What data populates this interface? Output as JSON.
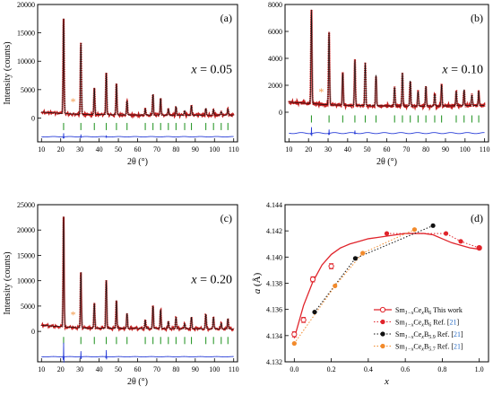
{
  "chart_data": [
    {
      "id": "a",
      "type": "line",
      "panel_label": "(a)",
      "annotation": "x = 0.05",
      "annotation_var": "x",
      "annotation_value": "= 0.05",
      "xlabel": "2θ (°)",
      "ylabel": "Intensity (counts)",
      "xlim": [
        8,
        112
      ],
      "ylim": [
        -4200,
        20000
      ],
      "x_ticks": [
        10,
        20,
        30,
        40,
        50,
        60,
        70,
        80,
        90,
        100,
        110
      ],
      "y_ticks": [
        0,
        5000,
        10000,
        15000,
        20000
      ],
      "background": {
        "x": [
          10,
          20,
          30,
          50,
          80,
          110
        ],
        "y": [
          1050,
          800,
          650,
          550,
          500,
          520
        ]
      },
      "peaks": [
        {
          "pos": 21.5,
          "height": 16800
        },
        {
          "pos": 30.5,
          "height": 12600
        },
        {
          "pos": 37.5,
          "height": 4700
        },
        {
          "pos": 43.7,
          "height": 7400
        },
        {
          "pos": 49.0,
          "height": 5500
        },
        {
          "pos": 54.5,
          "height": 2500
        },
        {
          "pos": 64.0,
          "height": 1100
        },
        {
          "pos": 68.0,
          "height": 3700
        },
        {
          "pos": 72.0,
          "height": 3000
        },
        {
          "pos": 76.0,
          "height": 1100
        },
        {
          "pos": 80.0,
          "height": 1500
        },
        {
          "pos": 84.5,
          "height": 800
        },
        {
          "pos": 88.0,
          "height": 1700
        },
        {
          "pos": 95.5,
          "height": 1200
        },
        {
          "pos": 99.5,
          "height": 1000
        },
        {
          "pos": 103.5,
          "height": 600
        },
        {
          "pos": 107.0,
          "height": 1100
        }
      ],
      "impurity_x": 26.5,
      "reflection_markers": [
        21.5,
        30.5,
        37.5,
        43.7,
        49.0,
        54.5,
        64.0,
        68.0,
        72.0,
        76.0,
        80.0,
        84.5,
        88.0,
        95.5,
        99.5,
        103.5,
        107.0
      ],
      "marker_y": -1500,
      "difference_y": -3300,
      "difference_spikes": [
        {
          "pos": 21.5,
          "amp": 700
        },
        {
          "pos": 30.5,
          "amp": 450
        },
        {
          "pos": 43.7,
          "amp": 250
        }
      ]
    },
    {
      "id": "b",
      "type": "line",
      "panel_label": "(b)",
      "annotation": "x = 0.10",
      "annotation_var": "x",
      "annotation_value": "= 0.10",
      "xlabel": "2θ (°)",
      "ylabel": "",
      "xlim": [
        8,
        112
      ],
      "ylim": [
        -2200,
        8000
      ],
      "x_ticks": [
        10,
        20,
        30,
        40,
        50,
        60,
        70,
        80,
        90,
        100,
        110
      ],
      "y_ticks": [
        0,
        2000,
        4000,
        6000,
        8000
      ],
      "background": {
        "x": [
          10,
          20,
          30,
          50,
          80,
          110
        ],
        "y": [
          750,
          650,
          550,
          480,
          450,
          500
        ]
      },
      "peaks": [
        {
          "pos": 21.5,
          "height": 7000
        },
        {
          "pos": 30.5,
          "height": 5400
        },
        {
          "pos": 37.5,
          "height": 2400
        },
        {
          "pos": 43.7,
          "height": 3400
        },
        {
          "pos": 49.0,
          "height": 3200
        },
        {
          "pos": 54.5,
          "height": 2300
        },
        {
          "pos": 64.0,
          "height": 1400
        },
        {
          "pos": 68.0,
          "height": 2500
        },
        {
          "pos": 72.0,
          "height": 1900
        },
        {
          "pos": 76.0,
          "height": 1100
        },
        {
          "pos": 80.0,
          "height": 1500
        },
        {
          "pos": 84.5,
          "height": 900
        },
        {
          "pos": 88.0,
          "height": 1600
        },
        {
          "pos": 95.5,
          "height": 1100
        },
        {
          "pos": 99.5,
          "height": 1200
        },
        {
          "pos": 103.5,
          "height": 800
        },
        {
          "pos": 107.0,
          "height": 1100
        }
      ],
      "impurity_x": 26.5,
      "reflection_markers": [
        21.5,
        30.5,
        37.5,
        43.7,
        49.0,
        54.5,
        64.0,
        68.0,
        72.0,
        76.0,
        80.0,
        84.5,
        88.0,
        95.5,
        99.5,
        103.5,
        107.0
      ],
      "marker_y": -500,
      "difference_y": -1550,
      "difference_spikes": [
        {
          "pos": 21.5,
          "amp": 500
        },
        {
          "pos": 30.5,
          "amp": 300
        },
        {
          "pos": 43.7,
          "amp": 200
        }
      ]
    },
    {
      "id": "c",
      "type": "line",
      "panel_label": "(c)",
      "annotation": "x = 0.20",
      "annotation_var": "x",
      "annotation_value": "= 0.20",
      "xlabel": "2θ (°)",
      "ylabel": "Intensity (counts)",
      "xlim": [
        8,
        112
      ],
      "ylim": [
        -6000,
        25000
      ],
      "x_ticks": [
        10,
        20,
        30,
        40,
        50,
        60,
        70,
        80,
        90,
        100,
        110
      ],
      "y_ticks": [
        0,
        5000,
        10000,
        15000,
        20000,
        25000
      ],
      "background": {
        "x": [
          10,
          20,
          30,
          50,
          80,
          110
        ],
        "y": [
          1200,
          950,
          700,
          600,
          550,
          500
        ]
      },
      "peaks": [
        {
          "pos": 21.5,
          "height": 21800
        },
        {
          "pos": 30.5,
          "height": 11000
        },
        {
          "pos": 37.5,
          "height": 4900
        },
        {
          "pos": 43.7,
          "height": 9500
        },
        {
          "pos": 49.0,
          "height": 5500
        },
        {
          "pos": 54.5,
          "height": 3000
        },
        {
          "pos": 64.0,
          "height": 1700
        },
        {
          "pos": 68.0,
          "height": 4500
        },
        {
          "pos": 72.0,
          "height": 3800
        },
        {
          "pos": 76.0,
          "height": 1400
        },
        {
          "pos": 80.0,
          "height": 2200
        },
        {
          "pos": 84.5,
          "height": 1000
        },
        {
          "pos": 88.0,
          "height": 2300
        },
        {
          "pos": 95.5,
          "height": 2900
        },
        {
          "pos": 99.5,
          "height": 2300
        },
        {
          "pos": 103.5,
          "height": 1100
        },
        {
          "pos": 107.0,
          "height": 2000
        }
      ],
      "impurity_x": 26.5,
      "reflection_markers": [
        21.5,
        30.5,
        37.5,
        43.7,
        49.0,
        54.5,
        64.0,
        68.0,
        72.0,
        76.0,
        80.0,
        84.5,
        88.0,
        95.5,
        99.5,
        103.5,
        107.0
      ],
      "marker_y": -1800,
      "difference_y": -5000,
      "difference_spikes": [
        {
          "pos": 21.5,
          "amp": 3000
        },
        {
          "pos": 30.5,
          "amp": 1200
        },
        {
          "pos": 43.7,
          "amp": 1400
        }
      ]
    },
    {
      "id": "d",
      "type": "scatter",
      "panel_label": "(d)",
      "xlabel": "x",
      "ylabel_var": "a",
      "ylabel_unit": " (Å)",
      "xlim": [
        -0.05,
        1.05
      ],
      "ylim": [
        4.132,
        4.144
      ],
      "x_ticks": [
        0.0,
        0.2,
        0.4,
        0.6,
        0.8,
        1.0
      ],
      "x_tick_labels": [
        "0.0",
        "0.2",
        "0.4",
        "0.6",
        "0.8",
        "1.0"
      ],
      "y_ticks": [
        4.132,
        4.134,
        4.136,
        4.138,
        4.14,
        4.142,
        4.144
      ],
      "y_tick_labels": [
        "4.132",
        "4.134",
        "4.136",
        "4.138",
        "4.140",
        "4.142",
        "4.144"
      ],
      "fit_curve": {
        "x": [
          0,
          0.05,
          0.1,
          0.15,
          0.2,
          0.25,
          0.3,
          0.35,
          0.4,
          0.45,
          0.5,
          0.55,
          0.6,
          0.65,
          0.7,
          0.75,
          0.8,
          0.85,
          0.9,
          0.95,
          1.0
        ],
        "y": [
          4.1338,
          4.1363,
          4.1381,
          4.1394,
          4.1402,
          4.1407,
          4.141,
          4.1412,
          4.1414,
          4.1415,
          4.1416,
          4.1417,
          4.1418,
          4.1418,
          4.1418,
          4.1417,
          4.1414,
          4.1411,
          4.1409,
          4.1407,
          4.1406
        ],
        "color": "#e0242b"
      },
      "series": [
        {
          "legend": {
            "formula": [
              "Sm",
              "1−x",
              "Ce",
              "x",
              "B",
              "6"
            ],
            "source": "This work",
            "ref": ""
          },
          "marker": "open-circle",
          "color": "#e0242b",
          "line": "solid",
          "x": [
            0.0,
            0.05,
            0.1,
            0.2,
            1.0
          ],
          "y": [
            4.1341,
            4.1352,
            4.1383,
            4.1393,
            4.1407
          ],
          "yerr": [
            0.0002,
            0.0002,
            0.0002,
            0.0002,
            0.0001
          ]
        },
        {
          "legend": {
            "formula": [
              "Sm",
              "1−x",
              "Ce",
              "x",
              "B",
              "6"
            ],
            "source": "Ref. [",
            "ref": "21",
            "tail": "]"
          },
          "marker": "filled-circle",
          "color": "#e0242b",
          "line": "dotted",
          "x": [
            0.5,
            0.82,
            0.9,
            1.0
          ],
          "y": [
            4.1418,
            4.1418,
            4.1412,
            4.1407
          ]
        },
        {
          "legend": {
            "formula": [
              "Sm",
              "1−x",
              "Ce",
              "x",
              "B",
              "5.9"
            ],
            "source": "Ref. [",
            "ref": "21",
            "tail": "]"
          },
          "marker": "filled-circle",
          "color": "#111111",
          "line": "dotted",
          "x": [
            0.11,
            0.33,
            0.75
          ],
          "y": [
            4.1358,
            4.1399,
            4.1424
          ]
        },
        {
          "legend": {
            "formula": [
              "Sm",
              "1−x",
              "Ce",
              "x",
              "B",
              "5.7"
            ],
            "source": "Ref. [",
            "ref": "21",
            "tail": "]"
          },
          "marker": "filled-circle",
          "color": "#f28a2b",
          "line": "dotted",
          "x": [
            0.0,
            0.22,
            0.37,
            0.65
          ],
          "y": [
            4.1334,
            4.1378,
            4.1403,
            4.1421
          ]
        }
      ],
      "ref_color": "#2b6ec6"
    }
  ],
  "colors": {
    "observed": "#c31a1a",
    "calculated": "#111111",
    "difference": "#2a3fd8",
    "bragg_markers": "#2f9a2f",
    "impurity_star": "#f2994a"
  }
}
